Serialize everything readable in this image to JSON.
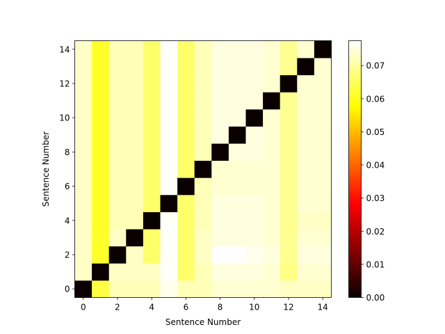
{
  "chart_data": {
    "type": "heatmap",
    "xlabel": "Sentence Number",
    "ylabel": "Sentence Number",
    "x_ticks": [
      "0",
      "2",
      "4",
      "6",
      "8",
      "10",
      "12",
      "14"
    ],
    "y_ticks": [
      "0",
      "2",
      "4",
      "6",
      "8",
      "10",
      "12",
      "14"
    ],
    "xlim": [
      -0.5,
      14.5
    ],
    "ylim": [
      -0.5,
      14.5
    ],
    "colormap": "hot",
    "colorbar": {
      "vmin": 0.0,
      "vmax": 0.0775,
      "ticks": [
        "0.00",
        "0.01",
        "0.02",
        "0.03",
        "0.04",
        "0.05",
        "0.06",
        "0.07"
      ],
      "tick_values": [
        0,
        0.01,
        0.02,
        0.03,
        0.04,
        0.05,
        0.06,
        0.07
      ]
    },
    "matrix": [
      [
        0.0,
        0.063,
        0.072,
        0.072,
        0.072,
        0.076,
        0.072,
        0.072,
        0.074,
        0.074,
        0.074,
        0.074,
        0.073,
        0.073,
        0.073
      ],
      [
        0.073,
        0.0,
        0.073,
        0.073,
        0.073,
        0.077,
        0.066,
        0.072,
        0.075,
        0.075,
        0.075,
        0.074,
        0.068,
        0.074,
        0.074
      ],
      [
        0.073,
        0.061,
        0.0,
        0.073,
        0.066,
        0.077,
        0.066,
        0.073,
        0.0775,
        0.0775,
        0.076,
        0.075,
        0.069,
        0.075,
        0.075
      ],
      [
        0.073,
        0.061,
        0.073,
        0.0,
        0.066,
        0.077,
        0.066,
        0.073,
        0.075,
        0.075,
        0.075,
        0.074,
        0.069,
        0.074,
        0.074
      ],
      [
        0.073,
        0.061,
        0.072,
        0.072,
        0.0,
        0.077,
        0.066,
        0.072,
        0.075,
        0.075,
        0.075,
        0.074,
        0.069,
        0.073,
        0.073
      ],
      [
        0.073,
        0.061,
        0.072,
        0.072,
        0.066,
        0.0,
        0.066,
        0.072,
        0.075,
        0.075,
        0.075,
        0.074,
        0.069,
        0.074,
        0.074
      ],
      [
        0.073,
        0.061,
        0.072,
        0.072,
        0.066,
        0.077,
        0.0,
        0.072,
        0.074,
        0.074,
        0.074,
        0.074,
        0.069,
        0.074,
        0.074
      ],
      [
        0.073,
        0.061,
        0.072,
        0.072,
        0.066,
        0.077,
        0.066,
        0.0,
        0.074,
        0.074,
        0.074,
        0.074,
        0.069,
        0.074,
        0.074
      ],
      [
        0.073,
        0.061,
        0.072,
        0.072,
        0.066,
        0.077,
        0.066,
        0.072,
        0.0,
        0.075,
        0.075,
        0.074,
        0.069,
        0.074,
        0.074
      ],
      [
        0.073,
        0.061,
        0.072,
        0.072,
        0.066,
        0.077,
        0.066,
        0.072,
        0.075,
        0.0,
        0.075,
        0.074,
        0.069,
        0.074,
        0.074
      ],
      [
        0.073,
        0.061,
        0.072,
        0.072,
        0.066,
        0.077,
        0.066,
        0.072,
        0.075,
        0.075,
        0.0,
        0.074,
        0.069,
        0.074,
        0.074
      ],
      [
        0.073,
        0.061,
        0.072,
        0.072,
        0.066,
        0.077,
        0.066,
        0.072,
        0.075,
        0.075,
        0.075,
        0.0,
        0.069,
        0.074,
        0.074
      ],
      [
        0.073,
        0.061,
        0.072,
        0.072,
        0.066,
        0.077,
        0.066,
        0.072,
        0.075,
        0.075,
        0.075,
        0.074,
        0.0,
        0.074,
        0.074
      ],
      [
        0.073,
        0.061,
        0.072,
        0.072,
        0.066,
        0.077,
        0.066,
        0.072,
        0.075,
        0.075,
        0.075,
        0.074,
        0.069,
        0.0,
        0.074
      ],
      [
        0.073,
        0.061,
        0.072,
        0.072,
        0.066,
        0.077,
        0.066,
        0.072,
        0.075,
        0.075,
        0.075,
        0.074,
        0.069,
        0.074,
        0.0
      ]
    ]
  }
}
